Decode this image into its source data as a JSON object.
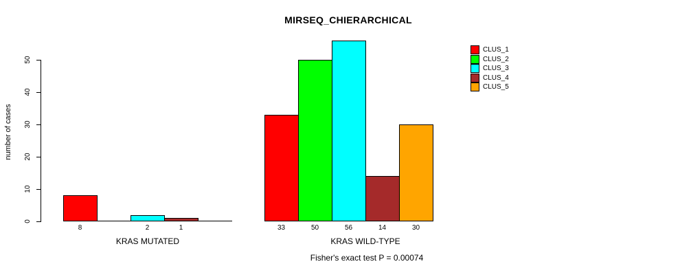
{
  "title": "MIRSEQ_CHIERARCHICAL",
  "subtitle": "Fisher's exact test P = 0.00074",
  "chart_data": {
    "type": "bar",
    "title": "MIRSEQ_CHIERARCHICAL",
    "xlabel": "",
    "ylabel": "number of cases",
    "groups": [
      "KRAS MUTATED",
      "KRAS WILD-TYPE"
    ],
    "series": [
      {
        "name": "CLUS_1",
        "color": "#FF0000",
        "values": [
          8,
          33
        ]
      },
      {
        "name": "CLUS_2",
        "color": "#00FF00",
        "values": [
          0,
          50
        ]
      },
      {
        "name": "CLUS_3",
        "color": "#00FFFF",
        "values": [
          2,
          56
        ]
      },
      {
        "name": "CLUS_4",
        "color": "#A52A2A",
        "values": [
          1,
          14
        ]
      },
      {
        "name": "CLUS_5",
        "color": "#FFA500",
        "values": [
          0,
          30
        ]
      }
    ],
    "yticks": [
      0,
      10,
      20,
      30,
      40,
      50
    ],
    "ylim": [
      0,
      56
    ],
    "bar_value_labels_visible": true,
    "zero_value_bars_hidden": true,
    "grid": false,
    "legend_position": "right",
    "annotation": "Fisher's exact test P = 0.00074"
  }
}
